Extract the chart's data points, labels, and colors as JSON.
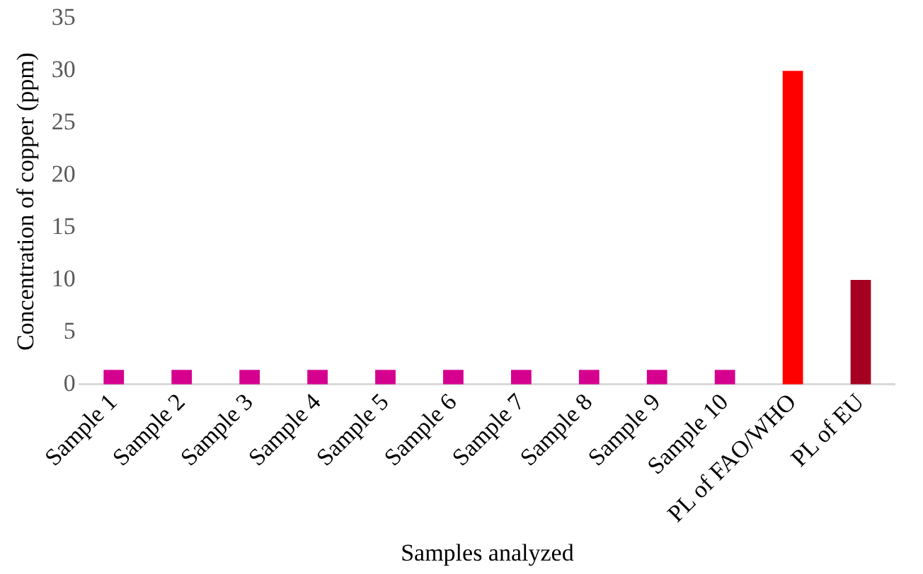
{
  "chart_data": {
    "type": "bar",
    "xlabel": "Samples analyzed",
    "ylabel": "Concentration of copper (ppm)",
    "categories": [
      "Sample 1",
      "Sample 2",
      "Sample 3",
      "Sample 4",
      "Sample 5",
      "Sample 6",
      "Sample 7",
      "Sample 8",
      "Sample 9",
      "Sample 10",
      "PL of FAO/WHO",
      "PL of EU"
    ],
    "values": [
      1.4,
      1.4,
      1.4,
      1.4,
      1.4,
      1.4,
      1.4,
      1.4,
      1.4,
      1.4,
      30,
      10
    ],
    "colors": [
      "#d6008f",
      "#d6008f",
      "#d6008f",
      "#d6008f",
      "#d6008f",
      "#d6008f",
      "#d6008f",
      "#d6008f",
      "#d6008f",
      "#d6008f",
      "#ff0000",
      "#a50021"
    ],
    "ylim": [
      0,
      35
    ],
    "yticks": [
      0,
      5,
      10,
      15,
      20,
      25,
      30,
      35
    ],
    "grid": false,
    "legend": false
  }
}
